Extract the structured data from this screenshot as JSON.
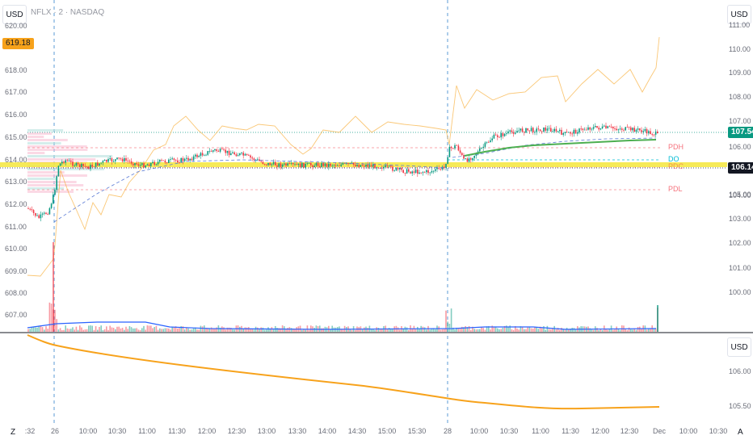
{
  "header": {
    "symbol_title": "NFLX · 2 · NASDAQ"
  },
  "left_axis": {
    "currency": "USD",
    "ticks": [
      "620.00",
      "618.00",
      "617.00",
      "616.00",
      "615.00",
      "614.00",
      "613.00",
      "612.00",
      "611.00",
      "610.00",
      "609.00",
      "608.00",
      "607.00"
    ],
    "price_badge": "619.18",
    "badge_color": "#f7a21b"
  },
  "right_axis": {
    "currency": "USD",
    "ticks": [
      "111.00",
      "110.00",
      "109.00",
      "108.00",
      "107.00",
      "106.00",
      "105.00",
      "104.00",
      "103.00",
      "102.00",
      "101.00",
      "100.00"
    ],
    "last_price": "107.54",
    "last_price_color": "#089981",
    "level_price": "106.14",
    "level_price_color": "#131722"
  },
  "levels": {
    "pdh": "PDH",
    "do": "DO",
    "pdc": "PDC",
    "pdl": "PDL"
  },
  "lower_pane": {
    "currency": "USD",
    "ticks": [
      "106.00",
      "105.50"
    ]
  },
  "time_axis": {
    "labels": [
      ":32",
      "26",
      "10:00",
      "10:30",
      "11:00",
      "11:30",
      "12:00",
      "12:30",
      "13:00",
      "13:30",
      "14:00",
      "14:30",
      "15:00",
      "15:30",
      "28",
      "10:00",
      "10:30",
      "11:00",
      "11:30",
      "12:00",
      "12:30",
      "Dec",
      "10:00",
      "10:30"
    ]
  },
  "corner_buttons": {
    "left": "Z",
    "right": "A"
  },
  "colors": {
    "up": "#089981",
    "down": "#f23645",
    "ema": "#4caf50",
    "overlay": "#f7a21b",
    "volume_ma": "#2962ff",
    "yellow_level": "#f5e63b"
  }
}
